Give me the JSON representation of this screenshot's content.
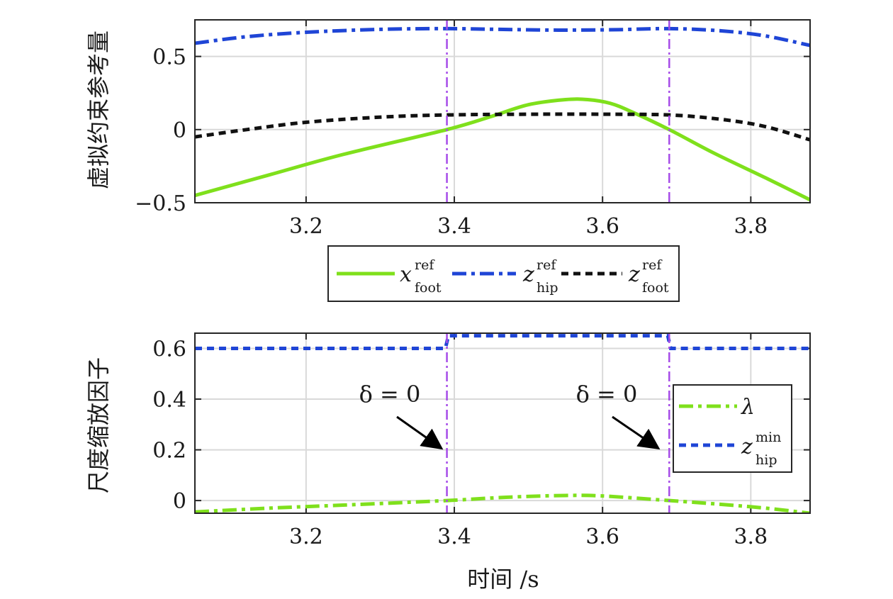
{
  "chart_data": [
    {
      "type": "line",
      "ylabel": "虚拟约束参考量",
      "xlim": [
        3.05,
        3.88
      ],
      "ylim": [
        -0.5,
        0.75
      ],
      "xticks": [
        "3.2",
        "3.4",
        "3.6",
        "3.8"
      ],
      "yticks": [
        "−0.5",
        "0",
        "0.5"
      ],
      "xtick_values": [
        3.2,
        3.4,
        3.6,
        3.8
      ],
      "ytick_values": [
        -0.5,
        0,
        0.5
      ],
      "grid": true,
      "legend_position": "below",
      "vlines": [
        3.39,
        3.69
      ],
      "series": [
        {
          "name": "x_foot^ref",
          "label_main": "x",
          "label_sup": "ref",
          "label_sub": "foot",
          "color": "#7fe01c",
          "style": "solid",
          "x": [
            3.05,
            3.15,
            3.25,
            3.39,
            3.45,
            3.5,
            3.55,
            3.58,
            3.61,
            3.64,
            3.69,
            3.75,
            3.82,
            3.88
          ],
          "y": [
            -0.45,
            -0.31,
            -0.17,
            0.0,
            0.09,
            0.17,
            0.205,
            0.205,
            0.18,
            0.12,
            0.0,
            -0.16,
            -0.33,
            -0.48
          ]
        },
        {
          "name": "z_hip^ref",
          "label_main": "z",
          "label_sup": "ref",
          "label_sub": "hip",
          "color": "#1f45d6",
          "style": "dashdot",
          "x": [
            3.05,
            3.12,
            3.2,
            3.3,
            3.39,
            3.46,
            3.54,
            3.62,
            3.69,
            3.76,
            3.82,
            3.88
          ],
          "y": [
            0.59,
            0.635,
            0.665,
            0.685,
            0.69,
            0.685,
            0.68,
            0.683,
            0.69,
            0.675,
            0.64,
            0.575
          ]
        },
        {
          "name": "z_foot^ref",
          "label_main": "z",
          "label_sup": "ref",
          "label_sub": "foot",
          "color": "#111111",
          "style": "dashed",
          "x": [
            3.05,
            3.12,
            3.2,
            3.3,
            3.39,
            3.5,
            3.6,
            3.69,
            3.76,
            3.82,
            3.88
          ],
          "y": [
            -0.05,
            0.0,
            0.05,
            0.085,
            0.1,
            0.105,
            0.105,
            0.1,
            0.07,
            0.02,
            -0.07
          ]
        }
      ]
    },
    {
      "type": "line",
      "ylabel": "尺度缩放因子",
      "xlabel": "时间 /s",
      "xlim": [
        3.05,
        3.88
      ],
      "ylim": [
        -0.05,
        0.66
      ],
      "xticks": [
        "3.2",
        "3.4",
        "3.6",
        "3.8"
      ],
      "yticks": [
        "0",
        "0.2",
        "0.4",
        "0.6"
      ],
      "xtick_values": [
        3.2,
        3.4,
        3.6,
        3.8
      ],
      "ytick_values": [
        0,
        0.2,
        0.4,
        0.6
      ],
      "grid": true,
      "legend_position": "right",
      "vlines": [
        3.39,
        3.69
      ],
      "annotations": [
        {
          "text": "δ = 0",
          "at_x": 3.39,
          "at_y": 0.2
        },
        {
          "text": "δ = 0",
          "at_x": 3.69,
          "at_y": 0.2
        }
      ],
      "series": [
        {
          "name": "λ",
          "label_main": "λ",
          "color": "#7fe01c",
          "style": "dashdot",
          "x": [
            3.05,
            3.15,
            3.25,
            3.39,
            3.47,
            3.55,
            3.6,
            3.69,
            3.76,
            3.82,
            3.88
          ],
          "y": [
            -0.045,
            -0.03,
            -0.018,
            0.0,
            0.013,
            0.02,
            0.018,
            0.0,
            -0.015,
            -0.03,
            -0.05
          ]
        },
        {
          "name": "z_hip^min",
          "label_main": "z",
          "label_sup": "min",
          "label_sub": "hip",
          "color": "#1f45d6",
          "style": "dashed",
          "x": [
            3.05,
            3.388,
            3.392,
            3.688,
            3.692,
            3.88
          ],
          "y": [
            0.6,
            0.6,
            0.65,
            0.65,
            0.6,
            0.6
          ]
        }
      ]
    }
  ]
}
